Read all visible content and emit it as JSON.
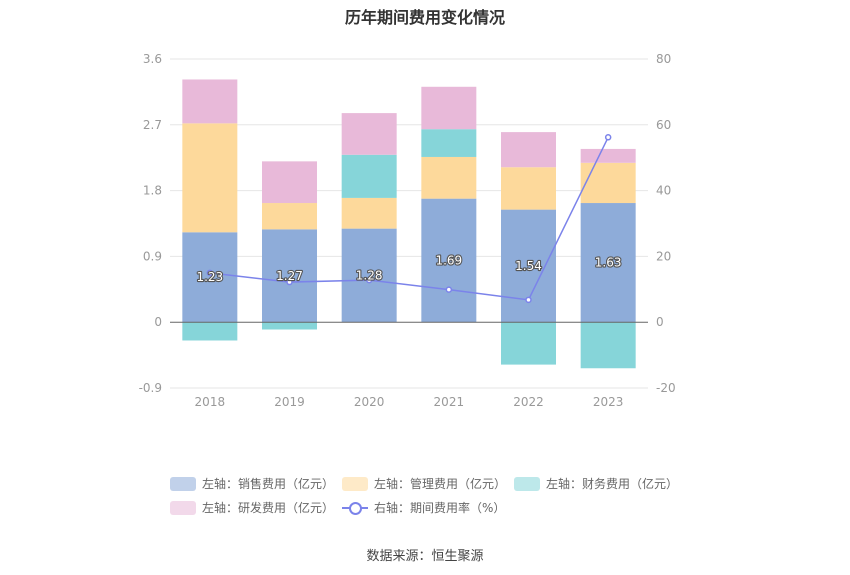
{
  "chart_data": {
    "type": "bar",
    "title": "历年期间费用变化情况",
    "categories": [
      "2018",
      "2019",
      "2020",
      "2021",
      "2022",
      "2023"
    ],
    "stacked": true,
    "left_axis": {
      "ylim": [
        -0.9,
        3.6
      ],
      "ticks": [
        "3.6",
        "2.7",
        "1.8",
        "0.9",
        "0",
        "-0.9"
      ]
    },
    "right_axis": {
      "ylim": [
        -20,
        80
      ],
      "ticks": [
        "80",
        "60",
        "40",
        "20",
        "0",
        "-20"
      ]
    },
    "grid": true,
    "legend_position": "bottom",
    "series": [
      {
        "name": "左轴：销售费用（亿元）",
        "axis": "left",
        "type": "bar",
        "color": "#8eacd9",
        "values": [
          1.23,
          1.27,
          1.28,
          1.69,
          1.54,
          1.63
        ],
        "labels": [
          "1.23",
          "1.27",
          "1.28",
          "1.69",
          "1.54",
          "1.63"
        ]
      },
      {
        "name": "左轴：管理费用（亿元）",
        "axis": "left",
        "type": "bar",
        "color": "#fdd99b",
        "values": [
          1.49,
          0.36,
          0.42,
          0.57,
          0.58,
          0.55
        ]
      },
      {
        "name": "左轴：财务费用（亿元）",
        "axis": "left",
        "type": "bar",
        "color": "#86d5d9",
        "values": [
          -0.25,
          -0.1,
          0.59,
          0.38,
          -0.58,
          -0.63
        ]
      },
      {
        "name": "左轴：研发费用（亿元）",
        "axis": "left",
        "type": "bar",
        "color": "#e8b9d9",
        "values": [
          0.6,
          0.57,
          0.57,
          0.58,
          0.48,
          0.19
        ]
      },
      {
        "name": "右轴：期间费用率（%）",
        "axis": "right",
        "type": "line",
        "color": "#7b83ea",
        "values": [
          15.0,
          12.2,
          12.8,
          9.9,
          6.8,
          56.2
        ]
      }
    ],
    "source": "数据来源：恒生聚源"
  }
}
